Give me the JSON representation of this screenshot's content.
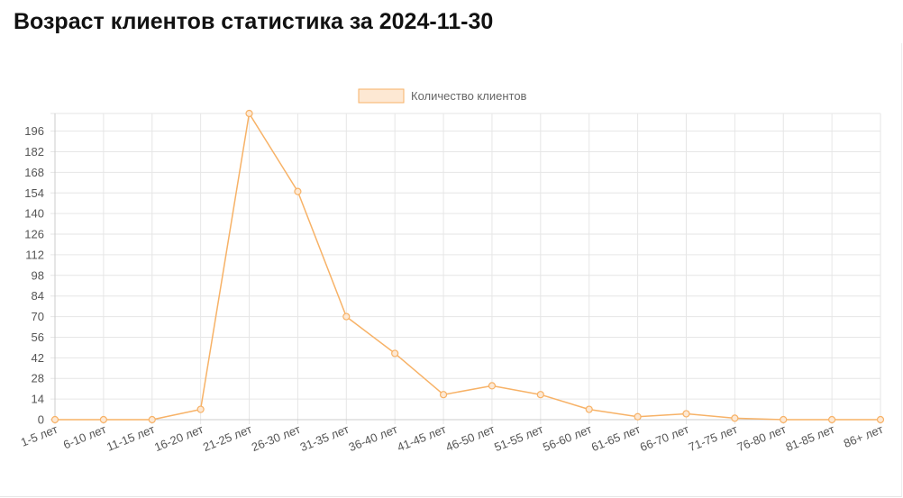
{
  "page": {
    "title": "Возраст клиентов статистика за 2024-11-30"
  },
  "chart_data": {
    "type": "line",
    "title": "",
    "xlabel": "",
    "ylabel": "",
    "categories": [
      "1-5 лет",
      "6-10 лет",
      "11-15 лет",
      "16-20 лет",
      "21-25 лет",
      "26-30 лет",
      "31-35 лет",
      "36-40 лет",
      "41-45 лет",
      "46-50 лет",
      "51-55 лет",
      "56-60 лет",
      "61-65 лет",
      "66-70 лет",
      "71-75 лет",
      "76-80 лет",
      "81-85 лет",
      "86+ лет"
    ],
    "series": [
      {
        "name": "Количество клиентов",
        "values": [
          0,
          0,
          0,
          7,
          208,
          155,
          70,
          45,
          17,
          23,
          17,
          7,
          2,
          4,
          1,
          0,
          0,
          0
        ]
      }
    ],
    "ylim": [
      0,
      208
    ],
    "yticks": [
      0,
      14,
      28,
      42,
      56,
      70,
      84,
      98,
      112,
      126,
      140,
      154,
      168,
      182,
      196
    ],
    "grid": true,
    "legend_position": "top",
    "colors": {
      "line": "#f7b267",
      "fill": "#fde8d3",
      "grid": "#e6e6e6"
    }
  }
}
